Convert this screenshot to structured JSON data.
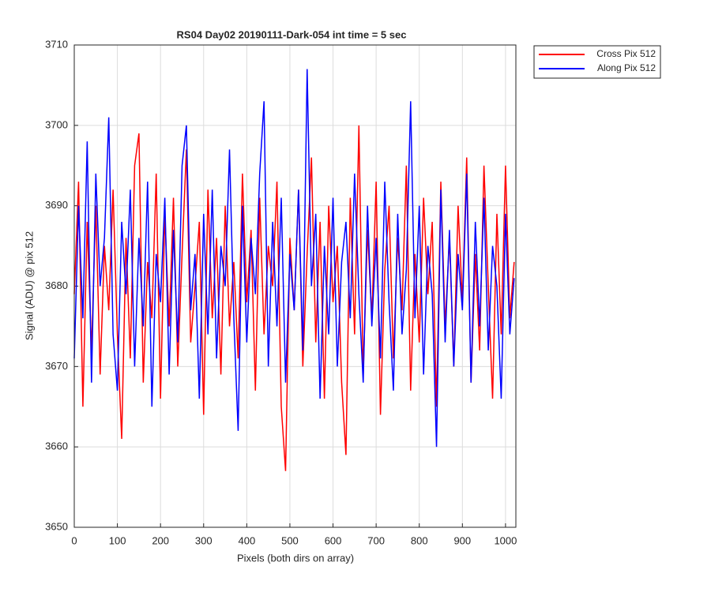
{
  "chart_data": {
    "type": "line",
    "title": "RS04 Day02 20190111-Dark-054 int time = 5 sec",
    "xlabel": "Pixels (both dirs on array)",
    "ylabel": "Signal (ADU) @ pix 512",
    "x": [
      0,
      10,
      20,
      30,
      40,
      50,
      60,
      70,
      80,
      90,
      100,
      110,
      120,
      130,
      140,
      150,
      160,
      170,
      180,
      190,
      200,
      210,
      220,
      230,
      240,
      250,
      260,
      270,
      280,
      290,
      300,
      310,
      320,
      330,
      340,
      350,
      360,
      370,
      380,
      390,
      400,
      410,
      420,
      430,
      440,
      450,
      460,
      470,
      480,
      490,
      500,
      510,
      520,
      530,
      540,
      550,
      560,
      570,
      580,
      590,
      600,
      610,
      620,
      630,
      640,
      650,
      660,
      670,
      680,
      690,
      700,
      710,
      720,
      730,
      740,
      750,
      760,
      770,
      780,
      790,
      800,
      810,
      820,
      830,
      840,
      850,
      860,
      870,
      880,
      890,
      900,
      910,
      920,
      930,
      940,
      950,
      960,
      970,
      980,
      990,
      1000,
      1010,
      1020
    ],
    "series": [
      {
        "name": "Cross Pix 512",
        "color": "#ff0000",
        "values": [
          3679,
          3693,
          3665,
          3688,
          3672,
          3690,
          3669,
          3685,
          3677,
          3692,
          3674,
          3661,
          3686,
          3671,
          3695,
          3699,
          3668,
          3683,
          3676,
          3694,
          3666,
          3689,
          3675,
          3691,
          3670,
          3684,
          3697,
          3673,
          3680,
          3688,
          3664,
          3692,
          3676,
          3686,
          3669,
          3690,
          3675,
          3683,
          3671,
          3694,
          3678,
          3687,
          3667,
          3691,
          3674,
          3685,
          3680,
          3693,
          3665,
          3657,
          3686,
          3677,
          3692,
          3670,
          3684,
          3696,
          3673,
          3688,
          3666,
          3690,
          3678,
          3685,
          3668,
          3659,
          3691,
          3674,
          3700,
          3669,
          3687,
          3676,
          3693,
          3664,
          3682,
          3690,
          3671,
          3686,
          3677,
          3695,
          3667,
          3684,
          3673,
          3691,
          3679,
          3688,
          3665,
          3693,
          3675,
          3686,
          3670,
          3690,
          3678,
          3696,
          3668,
          3684,
          3672,
          3695,
          3680,
          3666,
          3689,
          3674,
          3695,
          3676,
          3683
        ]
      },
      {
        "name": "Along Pix 512",
        "color": "#0000ff",
        "values": [
          3671,
          3690,
          3676,
          3698,
          3668,
          3694,
          3680,
          3686,
          3701,
          3674,
          3667,
          3688,
          3679,
          3692,
          3670,
          3686,
          3675,
          3693,
          3665,
          3684,
          3678,
          3691,
          3669,
          3687,
          3673,
          3695,
          3700,
          3677,
          3684,
          3666,
          3689,
          3674,
          3692,
          3671,
          3685,
          3680,
          3697,
          3676,
          3662,
          3690,
          3673,
          3686,
          3679,
          3694,
          3703,
          3670,
          3688,
          3675,
          3691,
          3668,
          3684,
          3677,
          3692,
          3672,
          3707,
          3680,
          3689,
          3666,
          3685,
          3674,
          3691,
          3670,
          3683,
          3688,
          3676,
          3694,
          3679,
          3668,
          3690,
          3675,
          3686,
          3671,
          3693,
          3678,
          3667,
          3689,
          3674,
          3682,
          3703,
          3676,
          3690,
          3669,
          3685,
          3679,
          3660,
          3692,
          3673,
          3687,
          3670,
          3684,
          3677,
          3694,
          3668,
          3688,
          3675,
          3691,
          3672,
          3685,
          3680,
          3666,
          3689,
          3674,
          3681
        ]
      }
    ],
    "xlim": [
      0,
      1024
    ],
    "ylim": [
      3650,
      3710
    ],
    "xticks": [
      0,
      100,
      200,
      300,
      400,
      500,
      600,
      700,
      800,
      900,
      1000
    ],
    "yticks": [
      3650,
      3660,
      3670,
      3680,
      3690,
      3700,
      3710
    ],
    "grid": true,
    "legend": "outside-top-right"
  }
}
